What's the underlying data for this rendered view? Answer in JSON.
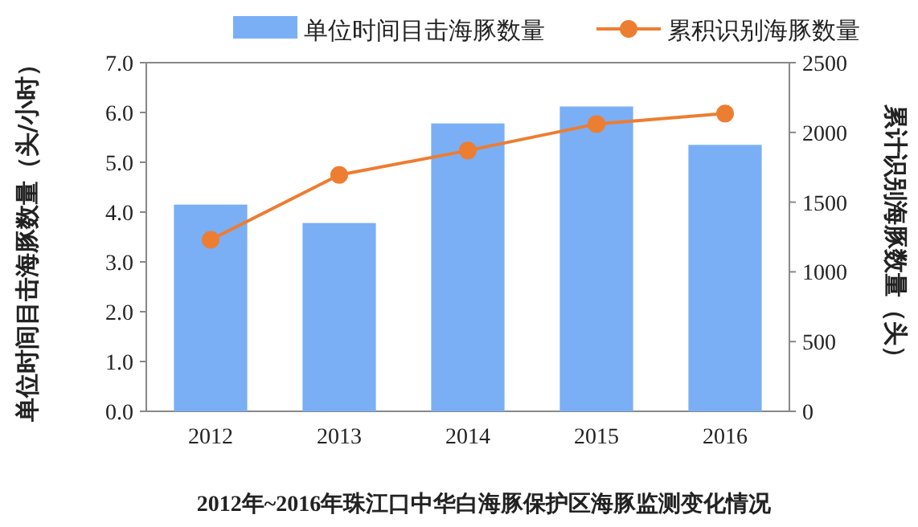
{
  "chart_data": {
    "type": "bar",
    "title": "2012年~2016年珠江口中华白海豚保护区海豚监测变化情况",
    "ylabel": "单位时间目击海豚数量（头/小时）",
    "y2label": "累计识别海豚数量（头）",
    "categories": [
      "2012",
      "2013",
      "2014",
      "2015",
      "2016"
    ],
    "series": [
      {
        "name": "单位时间目击海豚数量",
        "color": "#7aaff5",
        "values": [
          4.15,
          3.78,
          5.78,
          6.12,
          5.35
        ]
      },
      {
        "name": "累积识别海豚数量",
        "type": "line",
        "axis": "y2",
        "marker": "circle",
        "color": "#ed7d31",
        "values": [
          1230,
          1695,
          1870,
          2060,
          2135
        ]
      }
    ],
    "ylim": [
      0,
      7
    ],
    "yticks": [
      {
        "value": 0,
        "label": "0.0"
      },
      {
        "value": 1,
        "label": "1.0"
      },
      {
        "value": 2,
        "label": "2.0"
      },
      {
        "value": 3,
        "label": "3.0"
      },
      {
        "value": 4,
        "label": "4.0"
      },
      {
        "value": 5,
        "label": "5.0"
      },
      {
        "value": 6,
        "label": "6.0"
      },
      {
        "value": 7,
        "label": "7.0"
      }
    ],
    "y2lim": [
      0,
      2500
    ],
    "y2ticks": [
      0,
      500,
      1000,
      1500,
      2000,
      2500
    ],
    "legend": "top"
  }
}
